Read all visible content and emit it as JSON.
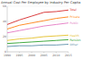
{
  "chart_data": {
    "type": "line",
    "title": "Annual Cost Per Employee by Industry Per Capita",
    "x": [
      1990,
      1995,
      2000,
      2005,
      2010,
      2015
    ],
    "xlim": [
      1990,
      2015
    ],
    "xticks": [
      1990,
      1995,
      2000,
      2005,
      2010,
      2015
    ],
    "ylim": [
      0,
      60
    ],
    "yticks": [
      0,
      20,
      40,
      60
    ],
    "grid": true,
    "legend": "right",
    "series": [
      {
        "name": "Total",
        "color": "#d62728",
        "values": [
          36,
          42,
          47,
          52,
          53,
          55
        ]
      },
      {
        "name": "Private",
        "color": "#ff7f0e",
        "values": [
          30,
          35,
          38,
          41,
          44,
          46
        ]
      },
      {
        "name": "Public",
        "color": "#e377c2",
        "values": [
          25,
          28,
          31,
          34,
          36,
          38
        ]
      },
      {
        "name": "Health",
        "color": "#e6c229",
        "values": [
          15,
          17,
          18,
          20,
          21,
          22
        ]
      },
      {
        "name": "Pension",
        "color": "#2ca02c",
        "values": [
          11,
          12,
          13,
          14,
          15,
          16
        ]
      },
      {
        "name": "Other",
        "color": "#5b8fa8",
        "values": [
          7,
          8,
          8,
          9,
          9,
          10
        ]
      }
    ]
  }
}
